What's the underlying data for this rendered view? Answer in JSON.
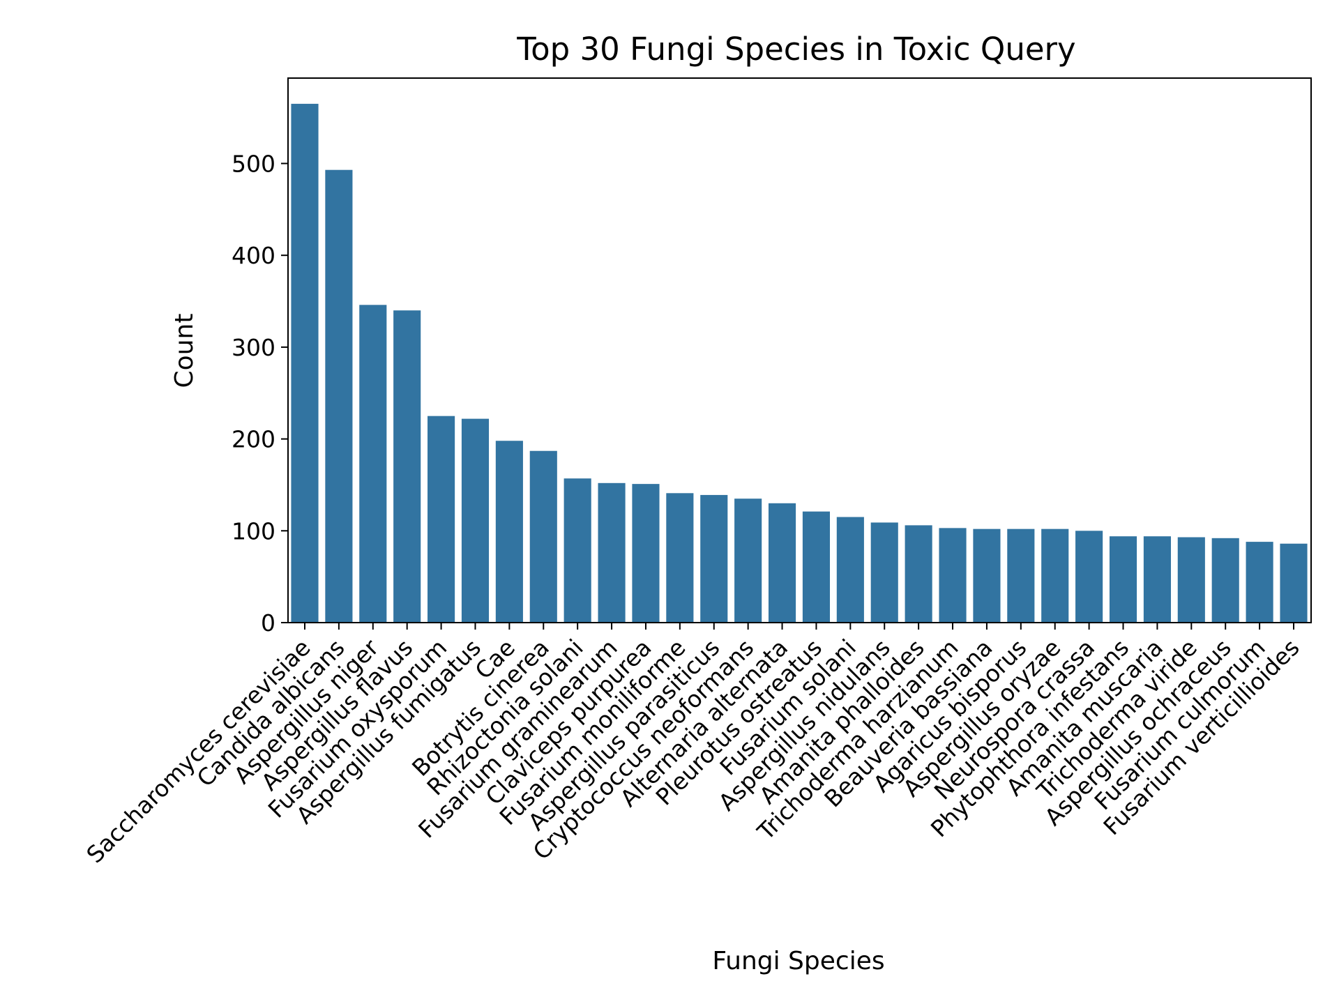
{
  "chart_data": {
    "type": "bar",
    "title": "Top 30 Fungi Species in Toxic Query",
    "xlabel": "Fungi Species",
    "ylabel": "Count",
    "ylim": [
      0,
      593
    ],
    "yticks": [
      0,
      100,
      200,
      300,
      400,
      500
    ],
    "grid": false,
    "legend": "none",
    "bar_color": "#3274a1",
    "categories": [
      "Saccharomyces cerevisiae",
      "Candida albicans",
      "Aspergillus niger",
      "Aspergillus flavus",
      "Fusarium oxysporum",
      "Aspergillus fumigatus",
      "Cae",
      "Botrytis cinerea",
      "Rhizoctonia solani",
      "Fusarium graminearum",
      "Claviceps purpurea",
      "Fusarium moniliforme",
      "Aspergillus parasiticus",
      "Cryptococcus neoformans",
      "Alternaria alternata",
      "Pleurotus ostreatus",
      "Fusarium solani",
      "Aspergillus nidulans",
      "Amanita phalloides",
      "Trichoderma harzianum",
      "Beauveria bassiana",
      "Agaricus bisporus",
      "Aspergillus oryzae",
      "Neurospora crassa",
      "Phytophthora infestans",
      "Amanita muscaria",
      "Trichoderma viride",
      "Aspergillus ochraceus",
      "Fusarium culmorum",
      "Fusarium verticillioides"
    ],
    "values": [
      565,
      493,
      346,
      340,
      225,
      222,
      198,
      187,
      157,
      152,
      151,
      141,
      139,
      135,
      130,
      121,
      115,
      109,
      106,
      103,
      102,
      102,
      102,
      100,
      94,
      94,
      93,
      92,
      88,
      86
    ]
  }
}
